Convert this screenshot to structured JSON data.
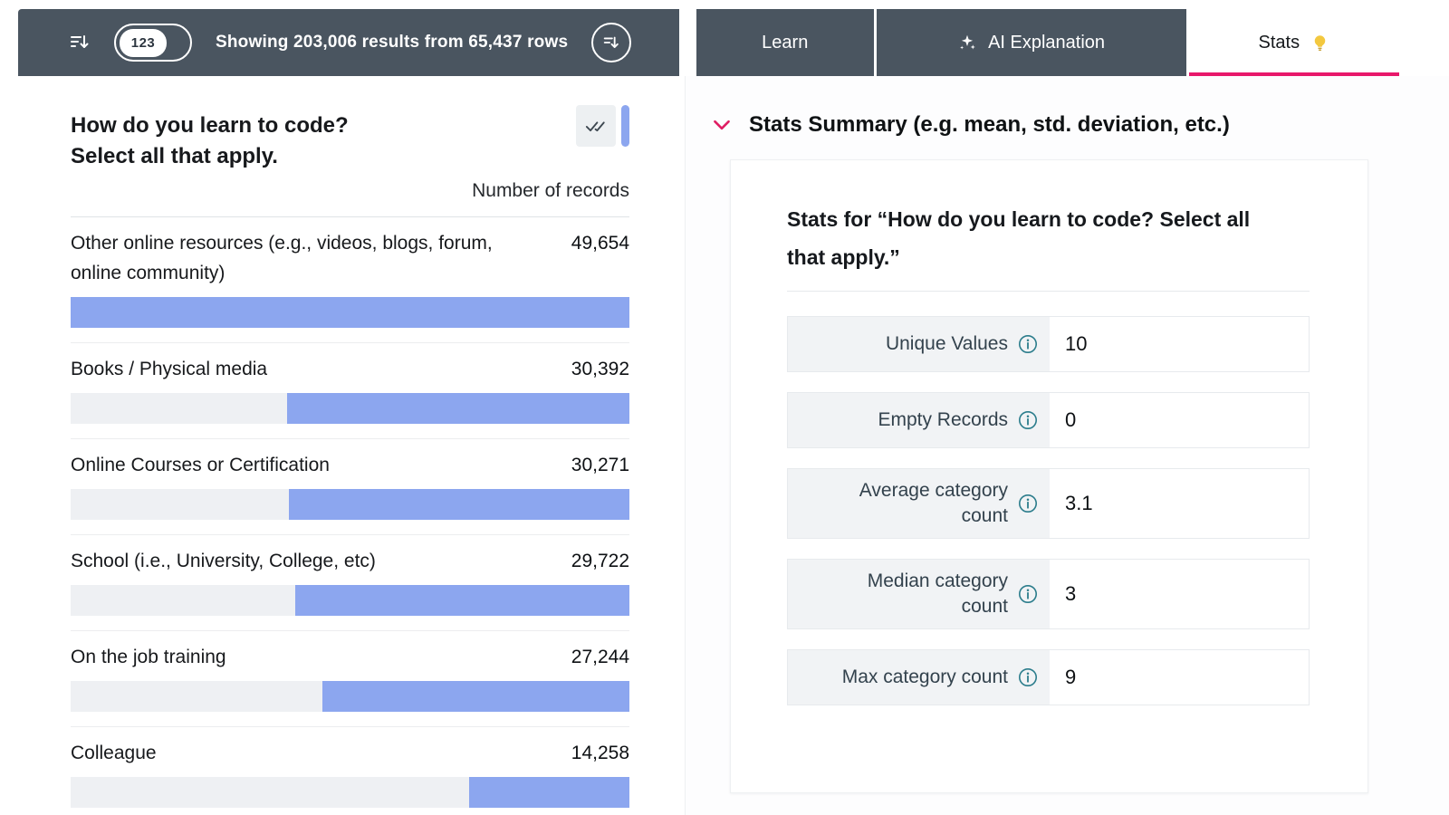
{
  "topbar": {
    "pill_label": "123",
    "results_text": "Showing 203,006 results from 65,437 rows",
    "tabs": [
      {
        "label": "Learn",
        "active": false
      },
      {
        "label": "AI Explanation",
        "icon": "sparkles-icon",
        "active": false
      },
      {
        "label": "Stats",
        "icon": "lightbulb-icon",
        "active": true
      }
    ]
  },
  "chart_panel": {
    "title_lines": [
      "How do you learn to code?",
      "Select all that apply."
    ],
    "axis_label": "Number of records"
  },
  "chart_data": {
    "type": "bar",
    "orientation": "horizontal",
    "title": "How do you learn to code? Select all that apply.",
    "value_axis_label": "Number of records",
    "categories": [
      "Other online resources (e.g., videos, blogs, forum, online community)",
      "Books / Physical media",
      "Online Courses or Certification",
      "School (i.e., University, College, etc)",
      "On the job training",
      "Colleague"
    ],
    "values": [
      49654,
      30392,
      30271,
      29722,
      27244,
      14258
    ],
    "value_labels": [
      "49,654",
      "30,392",
      "30,271",
      "29,722",
      "27,244",
      "14,258"
    ],
    "bar_color": "#8ca6ef",
    "track_color": "#eef0f3",
    "fill_alignment": "right"
  },
  "stats_panel": {
    "header": "Stats Summary (e.g. mean, std. deviation, etc.)",
    "card_title_lines": [
      "Stats for “How do you learn to code? Select all",
      "that apply.”"
    ],
    "rows": [
      {
        "label": "Unique Values",
        "value": "10"
      },
      {
        "label": "Empty Records",
        "value": "0"
      },
      {
        "label": "Average category count",
        "value": "3.1"
      },
      {
        "label": "Median category count",
        "value": "3"
      },
      {
        "label": "Max category count",
        "value": "9"
      }
    ]
  },
  "colors": {
    "topbar_background": "#4a5560",
    "accent_pink": "#e8186b",
    "bar_blue": "#8ca6ef",
    "bar_track": "#eef0f3",
    "info_teal": "#2c7d8c"
  },
  "icons": {
    "sort": "lines-with-down-arrow",
    "numeric_badge": "123",
    "sparkles": "four-point-stars",
    "lightbulb": "bulb",
    "double_check": "two-checkmarks",
    "info": "circled-i",
    "chevron_down": "v-shape"
  }
}
